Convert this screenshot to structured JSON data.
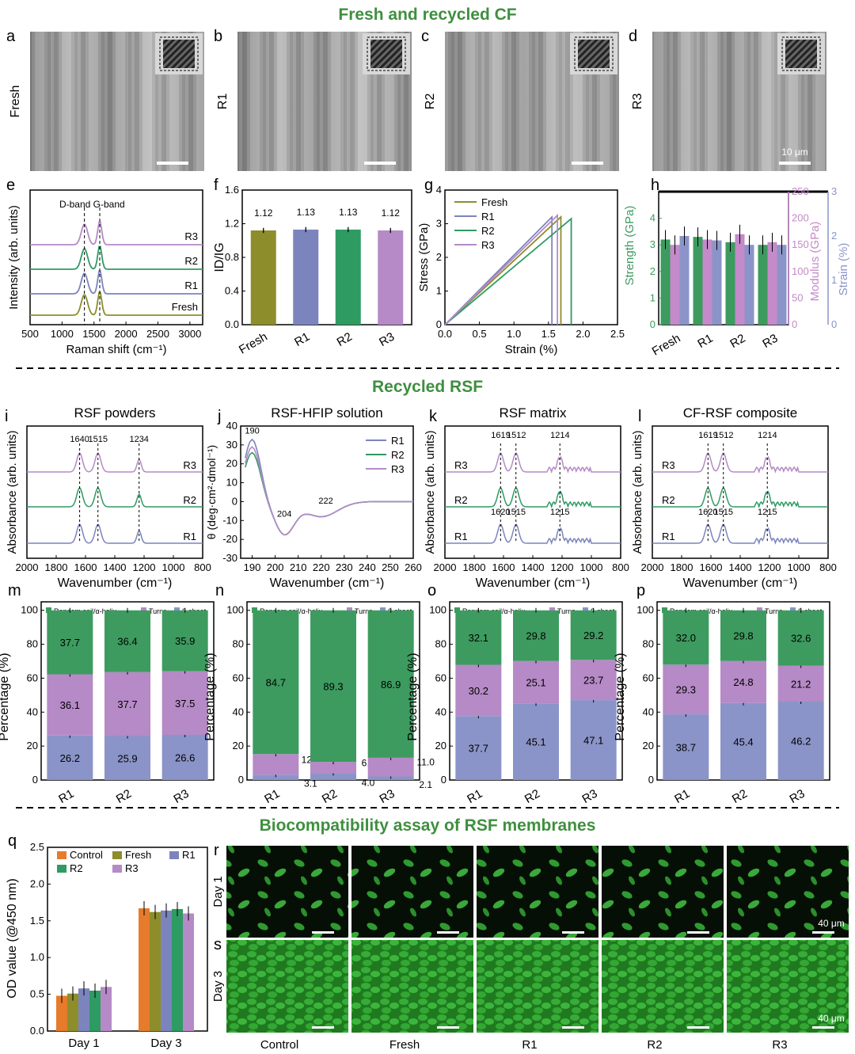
{
  "sections": [
    "Fresh and recycled CF",
    "Recycled RSF",
    "Biocompatibility assay of RSF membranes"
  ],
  "sem": {
    "letters": [
      "a",
      "b",
      "c",
      "d"
    ],
    "labels": [
      "Fresh",
      "R1",
      "R2",
      "R3"
    ],
    "scalebar": "10 μm"
  },
  "fluor": {
    "letters": [
      "r",
      "s"
    ],
    "rows": [
      "Day 1",
      "Day 3"
    ],
    "cols": [
      "Control",
      "Fresh",
      "R1",
      "R2",
      "R3"
    ],
    "scalebar": "40 μm"
  },
  "colors": {
    "fresh": "#8d8d2c",
    "r1": "#7c84bd",
    "r2": "#2e9b62",
    "r3": "#b58ac6",
    "control": "#e67b2b",
    "green": "#3d9b5f",
    "purple": "#c48ac9",
    "blue": "#8b94c8",
    "section": "#3f8f3f"
  },
  "chart_data": [
    {
      "id": "e",
      "type": "line",
      "xlabel": "Raman shift (cm⁻¹)",
      "ylabel": "Intensity (arb. units)",
      "xlim": [
        500,
        3200
      ],
      "xticks": [
        500,
        1000,
        1500,
        2000,
        2500,
        3000
      ],
      "series": [
        {
          "name": "Fresh"
        },
        {
          "name": "R1"
        },
        {
          "name": "R2"
        },
        {
          "name": "R3"
        }
      ],
      "annotations": [
        "D-band G-band"
      ],
      "peaks": [
        1350,
        1590
      ]
    },
    {
      "id": "f",
      "type": "bar",
      "ylabel": "ID/IG",
      "ylim": [
        0,
        1.6
      ],
      "yticks": [
        0.0,
        0.4,
        0.8,
        1.2,
        1.6
      ],
      "categories": [
        "Fresh",
        "R1",
        "R2",
        "R3"
      ],
      "values": [
        1.12,
        1.13,
        1.13,
        1.12
      ],
      "labels": [
        "1.12",
        "1.13",
        "1.13",
        "1.12"
      ]
    },
    {
      "id": "g",
      "type": "line",
      "xlabel": "Strain (%)",
      "ylabel": "Stress (GPa)",
      "xlim": [
        0,
        2.5
      ],
      "ylim": [
        0,
        4
      ],
      "xticks": [
        0.0,
        0.5,
        1.0,
        1.5,
        2.0,
        2.5
      ],
      "yticks": [
        0,
        1,
        2,
        3,
        4
      ],
      "series": [
        {
          "name": "Fresh",
          "x_end": 1.68,
          "y_end": 3.2
        },
        {
          "name": "R1",
          "x_end": 1.55,
          "y_end": 3.2
        },
        {
          "name": "R2",
          "x_end": 1.83,
          "y_end": 3.15
        },
        {
          "name": "R3",
          "x_end": 1.63,
          "y_end": 3.25
        }
      ]
    },
    {
      "id": "h",
      "type": "bar",
      "categories": [
        "Fresh",
        "R1",
        "R2",
        "R3"
      ],
      "axes": [
        {
          "name": "Strength (GPa)",
          "lim": [
            0,
            5
          ],
          "ticks": [
            0,
            1,
            2,
            3,
            4
          ]
        },
        {
          "name": "Modulus (GPa)",
          "lim": [
            0,
            250
          ],
          "ticks": [
            0,
            50,
            100,
            150,
            200,
            250
          ]
        },
        {
          "name": "Strain (%)",
          "lim": [
            0,
            3
          ],
          "ticks": [
            0,
            1,
            2,
            3
          ]
        }
      ],
      "series": [
        {
          "name": "Strength (GPa)",
          "values": [
            3.2,
            3.3,
            3.1,
            3.0
          ]
        },
        {
          "name": "Modulus (GPa)",
          "values": [
            150,
            160,
            170,
            155
          ]
        },
        {
          "name": "Strain (%)",
          "values": [
            2.0,
            1.9,
            1.8,
            1.8
          ]
        }
      ]
    },
    {
      "id": "i",
      "type": "line",
      "title": "RSF powders",
      "xlabel": "Wavenumber (cm⁻¹)",
      "ylabel": "Absorbance (arb. units)",
      "xlim": [
        2000,
        800
      ],
      "xticks": [
        2000,
        1800,
        1600,
        1400,
        1200,
        1000,
        800
      ],
      "series": [
        {
          "name": "R1"
        },
        {
          "name": "R2"
        },
        {
          "name": "R3"
        }
      ],
      "peaks": [
        1640,
        1515,
        1234
      ]
    },
    {
      "id": "j",
      "type": "line",
      "title": "RSF-HFIP solution",
      "xlabel": "Wavenumber (cm⁻¹)",
      "ylabel": "θ (deg·cm²·dmol⁻¹)",
      "xlim": [
        185,
        260
      ],
      "ylim": [
        -30,
        40
      ],
      "xticks": [
        190,
        200,
        210,
        220,
        230,
        240,
        250,
        260
      ],
      "yticks": [
        -30,
        -20,
        -10,
        0,
        10,
        20,
        30,
        40
      ],
      "series": [
        {
          "name": "R1"
        },
        {
          "name": "R2"
        },
        {
          "name": "R3"
        }
      ],
      "annotations": [
        "190",
        "204",
        "222"
      ]
    },
    {
      "id": "k",
      "type": "line",
      "title": "RSF matrix",
      "xlabel": "Wavenumber (cm⁻¹)",
      "ylabel": "Absorbance (arb. units)",
      "xlim": [
        2000,
        800
      ],
      "xticks": [
        2000,
        1800,
        1600,
        1400,
        1200,
        1000,
        800
      ],
      "series": [
        {
          "name": "R1"
        },
        {
          "name": "R2"
        },
        {
          "name": "R3"
        }
      ],
      "annotations": [
        "1619",
        "1512",
        "1214",
        "1620",
        "1515",
        "1215"
      ]
    },
    {
      "id": "l",
      "type": "line",
      "title": "CF-RSF composite",
      "xlabel": "Wavenumber (cm⁻¹)",
      "ylabel": "Absorbance (arb. units)",
      "xlim": [
        2000,
        800
      ],
      "xticks": [
        2000,
        1800,
        1600,
        1400,
        1200,
        1000,
        800
      ],
      "series": [
        {
          "name": "R1"
        },
        {
          "name": "R2"
        },
        {
          "name": "R3"
        }
      ],
      "annotations": [
        "1619",
        "1512",
        "1214",
        "1620",
        "1515",
        "1215"
      ]
    },
    {
      "id": "m",
      "type": "bar",
      "stacked": true,
      "ylabel": "Percentage (%)",
      "ylim": [
        0,
        105
      ],
      "yticks": [
        0,
        20,
        40,
        60,
        80,
        100
      ],
      "categories": [
        "R1",
        "R2",
        "R3"
      ],
      "series": [
        {
          "name": "β-sheet",
          "values": [
            26.2,
            25.9,
            26.6
          ]
        },
        {
          "name": "Turns",
          "values": [
            36.1,
            37.7,
            37.5
          ]
        },
        {
          "name": "Random coil/α-helix",
          "values": [
            37.7,
            36.4,
            35.9
          ]
        }
      ]
    },
    {
      "id": "n",
      "type": "bar",
      "stacked": true,
      "ylabel": "Percentage (%)",
      "ylim": [
        0,
        105
      ],
      "yticks": [
        0,
        20,
        40,
        60,
        80,
        100
      ],
      "categories": [
        "R1",
        "R2",
        "R3"
      ],
      "series": [
        {
          "name": "β-sheet",
          "values": [
            3.1,
            4.0,
            2.1
          ]
        },
        {
          "name": "Turns",
          "values": [
            12.2,
            6.7,
            11.0
          ]
        },
        {
          "name": "Random coil/α-helix",
          "values": [
            84.7,
            89.3,
            86.9
          ]
        }
      ]
    },
    {
      "id": "o",
      "type": "bar",
      "stacked": true,
      "ylabel": "Percentage (%)",
      "ylim": [
        0,
        105
      ],
      "yticks": [
        0,
        20,
        40,
        60,
        80,
        100
      ],
      "categories": [
        "R1",
        "R2",
        "R3"
      ],
      "series": [
        {
          "name": "β-sheet",
          "values": [
            37.7,
            45.1,
            47.1
          ]
        },
        {
          "name": "Turns",
          "values": [
            30.2,
            25.1,
            23.7
          ]
        },
        {
          "name": "Random coil/α-helix",
          "values": [
            32.1,
            29.8,
            29.2
          ]
        }
      ]
    },
    {
      "id": "p",
      "type": "bar",
      "stacked": true,
      "ylabel": "Percentage (%)",
      "ylim": [
        0,
        105
      ],
      "yticks": [
        0,
        20,
        40,
        60,
        80,
        100
      ],
      "categories": [
        "R1",
        "R2",
        "R3"
      ],
      "series": [
        {
          "name": "β-sheet",
          "values": [
            38.7,
            45.4,
            46.2
          ]
        },
        {
          "name": "Turns",
          "values": [
            29.3,
            24.8,
            21.2
          ]
        },
        {
          "name": "Random coil/α-helix",
          "values": [
            32.0,
            29.8,
            32.6
          ]
        }
      ]
    },
    {
      "id": "q",
      "type": "bar",
      "ylabel": "OD value (@450 nm)",
      "ylim": [
        0,
        2.5
      ],
      "yticks": [
        0.0,
        0.5,
        1.0,
        1.5,
        2.0,
        2.5
      ],
      "categories": [
        "Day 1",
        "Day 3"
      ],
      "series": [
        {
          "name": "Control",
          "values": [
            0.48,
            1.67
          ]
        },
        {
          "name": "Fresh",
          "values": [
            0.51,
            1.62
          ]
        },
        {
          "name": "R1",
          "values": [
            0.58,
            1.64
          ]
        },
        {
          "name": "R2",
          "values": [
            0.55,
            1.66
          ]
        },
        {
          "name": "R3",
          "values": [
            0.6,
            1.6
          ]
        }
      ]
    }
  ]
}
